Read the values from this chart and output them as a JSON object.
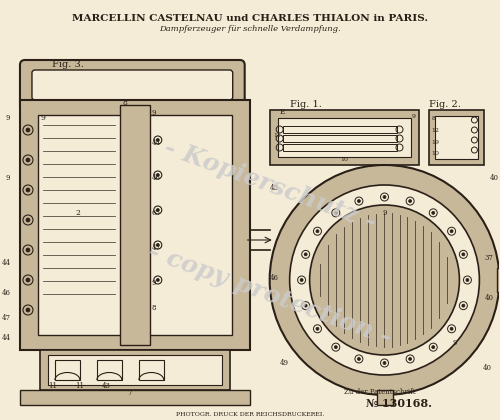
{
  "bg_color": "#f5ecd7",
  "title_line1": "MARCELLIN CASTELNAU und CHARLES THIALON in PARIS.",
  "title_line2": "Dampferzeuger für schnelle Verdampfung.",
  "watermark_line1": "- Kopierschutz -",
  "watermark_line2": "- copy protection -",
  "patent_number": "№ 130168.",
  "bottom_text": "PHOTOGR. DRUCK DER REICHSDRUCKEREI.",
  "patent_ref": "Zu der Patentschrift",
  "fig3_label": "Fig. 3.",
  "fig1_label": "Fig. 1.",
  "fig2_label": "Fig. 2."
}
